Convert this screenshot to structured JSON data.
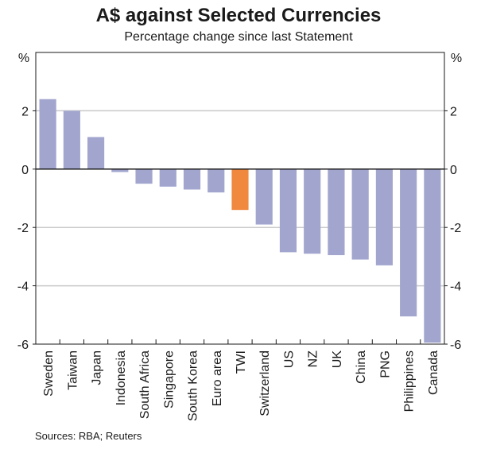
{
  "chart_data": {
    "type": "bar",
    "title": "A$ against Selected Currencies",
    "subtitle": "Percentage change since last Statement",
    "xlabel": "",
    "ylabel_left": "%",
    "ylabel_right": "%",
    "ylim": [
      -6,
      4
    ],
    "yticks": [
      -6,
      -4,
      -2,
      0,
      2
    ],
    "grid": true,
    "categories": [
      "Sweden",
      "Taiwan",
      "Japan",
      "Indonesia",
      "South Africa",
      "Singapore",
      "South Korea",
      "Euro area",
      "TWI",
      "Switzerland",
      "US",
      "NZ",
      "UK",
      "China",
      "PNG",
      "Philippines",
      "Canada"
    ],
    "values": [
      2.4,
      2.0,
      1.1,
      -0.1,
      -0.5,
      -0.6,
      -0.7,
      -0.8,
      -1.4,
      -1.9,
      -2.85,
      -2.9,
      -2.95,
      -3.1,
      -3.3,
      -5.05,
      -5.95
    ],
    "highlight": "TWI",
    "colors": {
      "bar": "#a2a6cf",
      "highlight": "#f0883e",
      "grid": "#c9c9c9",
      "axis": "#1a1a1a"
    },
    "source": "Sources: RBA; Reuters"
  }
}
